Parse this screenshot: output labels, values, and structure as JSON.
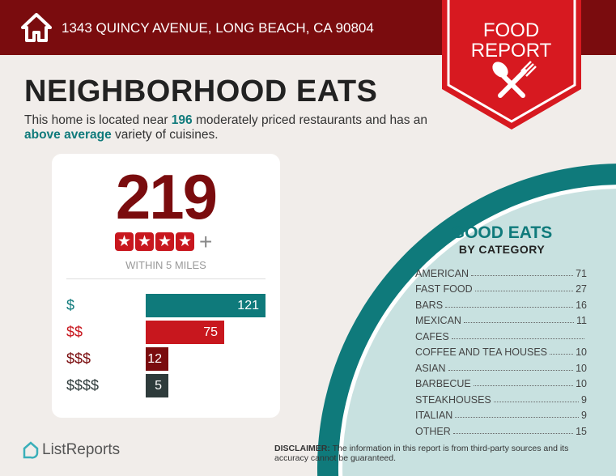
{
  "header": {
    "address": "1343 QUINCY AVENUE, LONG BEACH, CA 90804",
    "badge_line1": "FOOD",
    "badge_line2": "REPORT"
  },
  "title": "NEIGHBORHOOD EATS",
  "intro": {
    "p1": "This home is located near ",
    "count": "196",
    "p2": " moderately priced restaurants and has an ",
    "variety": "above average",
    "p3": " variety of cuisines."
  },
  "summary": {
    "total": "219",
    "rating_stars": 4,
    "rating_suffix": "+",
    "radius": "WITHIN 5 MILES"
  },
  "price_levels": [
    {
      "label": "$",
      "value": "121",
      "color": "#0f7a7b"
    },
    {
      "label": "$$",
      "value": "75",
      "color": "#c8171e"
    },
    {
      "label": "$$$",
      "value": "12",
      "color": "#7a0c0e"
    },
    {
      "label": "$$$$",
      "value": "5",
      "color": "#2e3b3b"
    }
  ],
  "categories": {
    "title": "GOOD EATS",
    "subtitle": "BY CATEGORY",
    "items": [
      {
        "name": "AMERICAN",
        "count": "71"
      },
      {
        "name": "FAST FOOD",
        "count": "27"
      },
      {
        "name": "BARS",
        "count": "16"
      },
      {
        "name": "MEXICAN",
        "count": "11"
      },
      {
        "name": "CAFES",
        "count": ""
      },
      {
        "name": "COFFEE AND TEA HOUSES",
        "count": "10"
      },
      {
        "name": "ASIAN",
        "count": "10"
      },
      {
        "name": "BARBECUE",
        "count": "10"
      },
      {
        "name": "STEAKHOUSES",
        "count": "9"
      },
      {
        "name": "ITALIAN",
        "count": "9"
      },
      {
        "name": "OTHER",
        "count": "15"
      }
    ]
  },
  "footer": {
    "brand": "ListReports",
    "disclaimer_label": "DISCLAIMER:",
    "disclaimer": " The information in this report is from third-party sources and its accuracy cannot be guaranteed."
  },
  "colors": {
    "maroon": "#7a0c0e",
    "red": "#c8171e",
    "teal": "#0f7a7b",
    "light_teal": "#c8e1e0"
  }
}
